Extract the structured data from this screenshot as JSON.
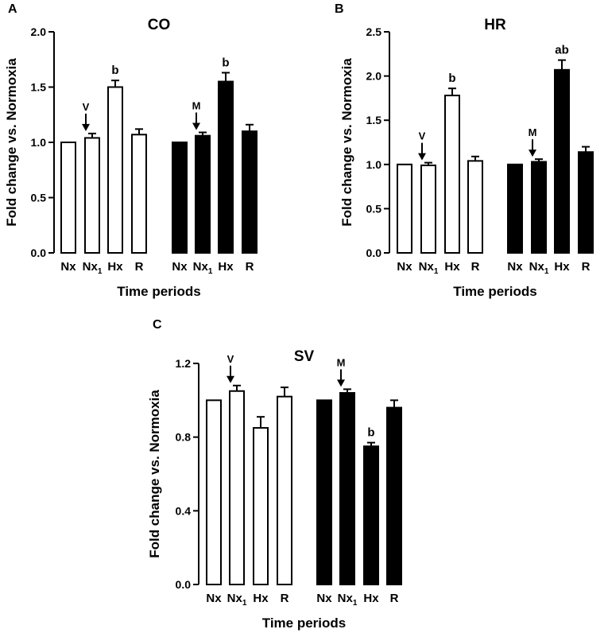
{
  "figure": {
    "panels": [
      "A",
      "B",
      "C"
    ]
  },
  "chart_data": [
    {
      "panel": "A",
      "type": "bar",
      "title": "CO",
      "xlabel": "Time periods",
      "ylabel": "Fold change vs. Normoxia",
      "ylim": [
        0,
        2.0
      ],
      "yticks": [
        "0.0",
        "0.5",
        "1.0",
        "1.5",
        "2.0"
      ],
      "categories": [
        "Nx",
        "Nx1",
        "Hx",
        "R"
      ],
      "series": [
        {
          "name": "Group V (open bars)",
          "fill": "#ffffff",
          "arrow_label": "V",
          "values": [
            1.0,
            1.04,
            1.5,
            1.07
          ],
          "errors": [
            0.0,
            0.04,
            0.06,
            0.05
          ],
          "labels": [
            "",
            "",
            "b",
            ""
          ]
        },
        {
          "name": "Group M (filled bars)",
          "fill": "#000000",
          "arrow_label": "M",
          "values": [
            1.0,
            1.06,
            1.55,
            1.1
          ],
          "errors": [
            0.0,
            0.03,
            0.08,
            0.06
          ],
          "labels": [
            "",
            "",
            "b",
            ""
          ]
        }
      ]
    },
    {
      "panel": "B",
      "type": "bar",
      "title": "HR",
      "xlabel": "Time periods",
      "ylabel": "Fold change vs. Normoxia",
      "ylim": [
        0,
        2.5
      ],
      "yticks": [
        "0.0",
        "0.5",
        "1.0",
        "1.5",
        "2.0",
        "2.5"
      ],
      "categories": [
        "Nx",
        "Nx1",
        "Hx",
        "R"
      ],
      "series": [
        {
          "name": "Group V (open bars)",
          "fill": "#ffffff",
          "arrow_label": "V",
          "values": [
            1.0,
            0.99,
            1.78,
            1.04
          ],
          "errors": [
            0.0,
            0.03,
            0.08,
            0.05
          ],
          "labels": [
            "",
            "",
            "b",
            ""
          ]
        },
        {
          "name": "Group M (filled bars)",
          "fill": "#000000",
          "arrow_label": "M",
          "values": [
            1.0,
            1.03,
            2.07,
            1.14
          ],
          "errors": [
            0.0,
            0.03,
            0.11,
            0.06
          ],
          "labels": [
            "",
            "",
            "ab",
            ""
          ]
        }
      ]
    },
    {
      "panel": "C",
      "type": "bar",
      "title": "SV",
      "xlabel": "Time periods",
      "ylabel": "Fold change vs. Normoxia",
      "ylim": [
        0,
        1.2
      ],
      "yticks": [
        "0.0",
        "0.4",
        "0.8",
        "1.2"
      ],
      "categories": [
        "Nx",
        "Nx1",
        "Hx",
        "R"
      ],
      "series": [
        {
          "name": "Group V (open bars)",
          "fill": "#ffffff",
          "arrow_label": "V",
          "values": [
            1.0,
            1.05,
            0.85,
            1.02
          ],
          "errors": [
            0.0,
            0.03,
            0.06,
            0.05
          ],
          "labels": [
            "",
            "",
            "",
            ""
          ]
        },
        {
          "name": "Group M (filled bars)",
          "fill": "#000000",
          "arrow_label": "M",
          "values": [
            1.0,
            1.04,
            0.75,
            0.96
          ],
          "errors": [
            0.0,
            0.02,
            0.02,
            0.04
          ],
          "labels": [
            "",
            "",
            "b",
            ""
          ]
        }
      ]
    }
  ]
}
